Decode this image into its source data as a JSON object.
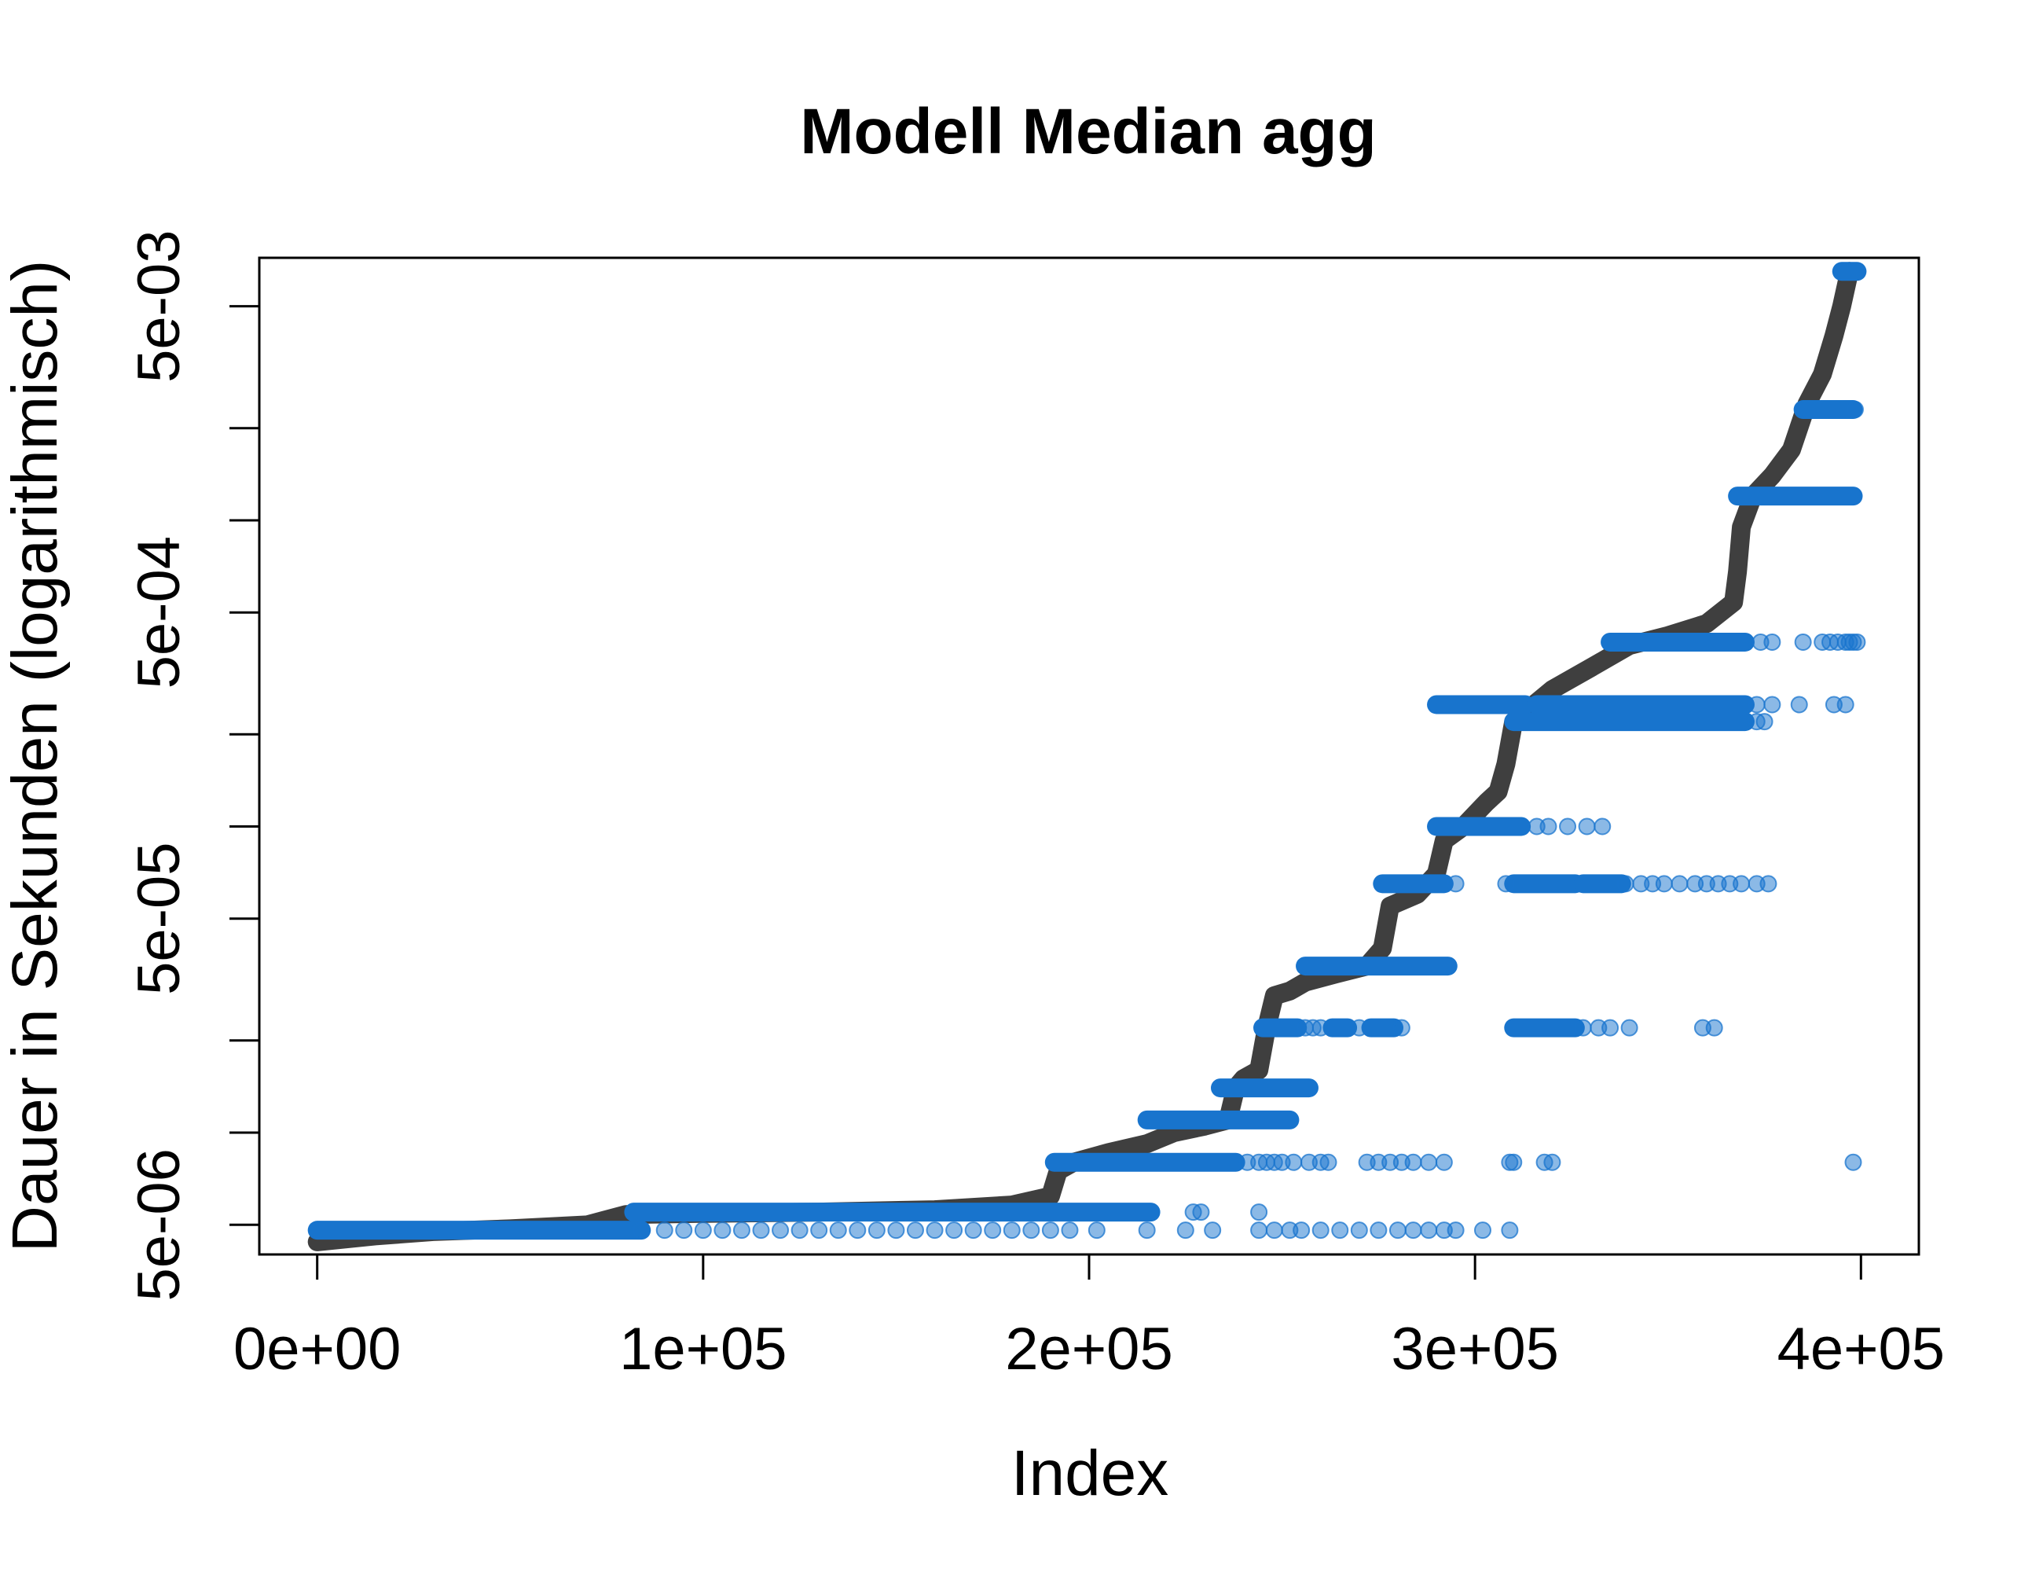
{
  "chart_data": {
    "type": "scatter",
    "title": "Modell Median agg",
    "xlabel": "Index",
    "ylabel": "Dauer in Sekunden (logarithmisch)",
    "log_y": true,
    "xlim": [
      -15000,
      415000
    ],
    "ylim": [
      4e-06,
      0.0072
    ],
    "x_ticks": [
      {
        "value": 0,
        "label": "0e+00"
      },
      {
        "value": 100000,
        "label": "1e+05"
      },
      {
        "value": 200000,
        "label": "2e+05"
      },
      {
        "value": 300000,
        "label": "3e+05"
      },
      {
        "value": 400000,
        "label": "4e+05"
      }
    ],
    "y_ticks_labeled": [
      {
        "value": 5e-06,
        "label": "5e-06"
      },
      {
        "value": 5e-05,
        "label": "5e-05"
      },
      {
        "value": 0.0005,
        "label": "5e-04"
      },
      {
        "value": 0.005,
        "label": "5e-03"
      }
    ],
    "y_ticks_minor": [
      1e-05,
      2e-05,
      0.0001,
      0.0002,
      0.001,
      0.002
    ],
    "colors": {
      "actual": "#3f3f3f",
      "predicted": "#1874cd"
    },
    "series": [
      {
        "role": "actual",
        "style": "thick-line",
        "x": [
          0,
          15000,
          30000,
          50000,
          70000,
          80000,
          100000,
          130000,
          160000,
          180000,
          190000,
          192000,
          196000,
          205000,
          215000,
          222000,
          230000,
          236000,
          238000,
          240000,
          244000,
          246000,
          248000,
          252000,
          256000,
          264000,
          272000,
          276000,
          278000,
          285000,
          290000,
          292000,
          297000,
          303000,
          306000,
          308000,
          310000,
          320000,
          330000,
          340000,
          350000,
          360000,
          367000,
          368000,
          369000,
          372000,
          377000,
          382000,
          386000,
          390000,
          393000,
          395000,
          397000
        ],
        "y": [
          4.4e-06,
          4.6e-06,
          4.75e-06,
          4.85e-06,
          5e-06,
          5.4e-06,
          5.45e-06,
          5.5e-06,
          5.6e-06,
          5.8e-06,
          6.2e-06,
          7.5e-06,
          8e-06,
          8.6e-06,
          9.2e-06,
          1e-05,
          1.05e-05,
          1.1e-05,
          1.4e-05,
          1.5e-05,
          1.6e-05,
          2.2e-05,
          2.8e-05,
          2.9e-05,
          3.1e-05,
          3.3e-05,
          3.5e-05,
          4e-05,
          5.5e-05,
          6e-05,
          7e-05,
          9e-05,
          0.0001,
          0.00012,
          0.00013,
          0.00016,
          0.00022,
          0.00028,
          0.00033,
          0.00039,
          0.00042,
          0.00046,
          0.00054,
          0.00068,
          0.00095,
          0.0012,
          0.0014,
          0.0017,
          0.0024,
          0.003,
          0.004,
          0.005,
          0.0065
        ]
      },
      {
        "role": "predicted",
        "style": "points",
        "levels": [
          {
            "y": 4.8e-06,
            "dense": [
              [
                0,
                84000
              ]
            ],
            "sparse": [
              84000,
              90000,
              95000,
              100000,
              105000,
              110000,
              115000,
              120000,
              125000,
              130000,
              135000,
              140000,
              145000,
              150000,
              155000,
              160000,
              165000,
              170000,
              175000,
              180000,
              185000,
              190000,
              195000,
              202000,
              215000,
              225000,
              232000,
              244000,
              248000,
              252000,
              255000,
              260000,
              265000,
              270000,
              275000,
              280000,
              284000,
              288000,
              292000,
              295000,
              302000,
              309000
            ]
          },
          {
            "y": 5.5e-06,
            "dense": [
              [
                82000,
                216000
              ]
            ],
            "sparse": [
              227000,
              229000,
              244000
            ]
          },
          {
            "y": 8e-06,
            "dense": [
              [
                191000,
                238000
              ]
            ],
            "sparse": [
              241000,
              244000,
              246000,
              248000,
              250000,
              253000,
              257000,
              260000,
              262000,
              272000,
              275000,
              278000,
              281000,
              284000,
              288000,
              292000,
              309000,
              310000,
              318000,
              320000,
              398000
            ]
          },
          {
            "y": 1.1e-05,
            "dense": [
              [
                215000,
                252000
              ]
            ],
            "sparse": []
          },
          {
            "y": 1.4e-05,
            "dense": [
              [
                234000,
                257000
              ]
            ],
            "sparse": []
          },
          {
            "y": 2.2e-05,
            "dense": [
              [
                245000,
                254000
              ],
              [
                263000,
                267000
              ],
              [
                273000,
                279000
              ],
              [
                310000,
                326000
              ]
            ],
            "sparse": [
              256000,
              258000,
              260000,
              270000,
              281000,
              328000,
              332000,
              335000,
              340000,
              359000,
              362000
            ]
          },
          {
            "y": 3.5e-05,
            "dense": [
              [
                256000,
                293000
              ]
            ],
            "sparse": []
          },
          {
            "y": 6.5e-05,
            "dense": [
              [
                276000,
                292000
              ],
              [
                310000,
                326000
              ],
              [
                328000,
                338000
              ]
            ],
            "sparse": [
              295000,
              308000,
              339000,
              343000,
              346000,
              349000,
              353000,
              357000,
              360000,
              363000,
              366000,
              369000,
              373000,
              376000
            ]
          },
          {
            "y": 0.0001,
            "dense": [
              [
                290000,
                312000
              ]
            ],
            "sparse": [
              316000,
              319000,
              324000,
              329000,
              333000
            ]
          },
          {
            "y": 0.00022,
            "dense": [
              [
                310000,
                370000
              ]
            ],
            "sparse": [
              373000,
              375000
            ]
          },
          {
            "y": 0.00025,
            "dense": [
              [
                290000,
                313000
              ],
              [
                316000,
                370000
              ]
            ],
            "sparse": [
              373000,
              377000,
              384000,
              393000,
              396000
            ]
          },
          {
            "y": 0.0004,
            "dense": [
              [
                335000,
                370000
              ]
            ],
            "sparse": [
              374000,
              377000,
              385000,
              390000,
              392000,
              394000,
              396000,
              397000,
              398000,
              399000
            ]
          },
          {
            "y": 0.0012,
            "dense": [
              [
                368000,
                398000
              ]
            ],
            "sparse": []
          },
          {
            "y": 0.0023,
            "dense": [
              [
                385000,
                398000
              ]
            ],
            "sparse": [
              398500
            ]
          },
          {
            "y": 0.0065,
            "dense": [
              [
                395000,
                399000
              ]
            ],
            "sparse": []
          }
        ]
      }
    ]
  }
}
